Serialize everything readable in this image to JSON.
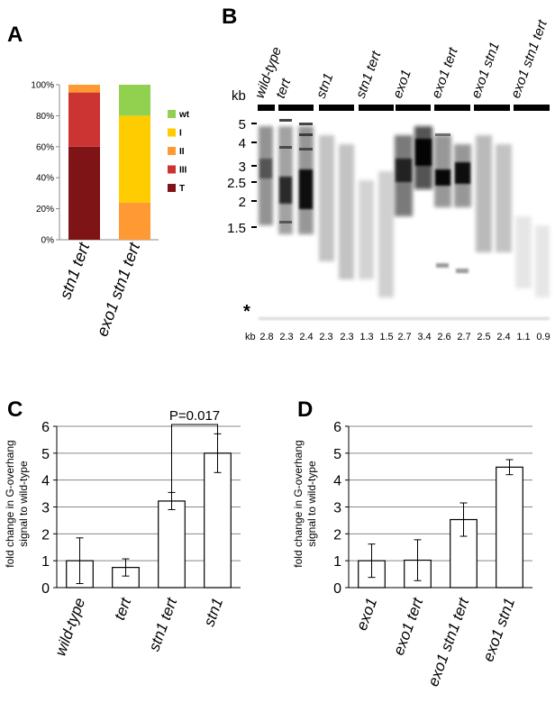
{
  "panels": {
    "A": {
      "label": "A"
    },
    "B": {
      "label": "B"
    },
    "C": {
      "label": "C"
    },
    "D": {
      "label": "D"
    }
  },
  "panelA": {
    "yticks": [
      "0%",
      "20%",
      "40%",
      "60%",
      "80%",
      "100%"
    ],
    "categories": [
      "stn1 tert",
      "exo1 stn1 tert"
    ],
    "legend": [
      {
        "label": "wt",
        "color": "#92d050"
      },
      {
        "label": "I",
        "color": "#ffcc00"
      },
      {
        "label": "II",
        "color": "#ff9933"
      },
      {
        "label": "III",
        "color": "#cc3333"
      },
      {
        "label": "T",
        "color": "#7f1416"
      }
    ]
  },
  "panelB": {
    "kb_label": "kb",
    "markers": [
      "5",
      "4",
      "3",
      "2.5",
      "2",
      "1.5"
    ],
    "asterisk": "*",
    "groups": [
      "wild-type",
      "tert",
      "stn1",
      "stn1 tert",
      "exo1",
      "exo1 tert",
      "exo1 stn1",
      "exo1 stn1 tert"
    ],
    "bottom_kb_label": "kb",
    "lane_kb": [
      "2.8",
      "2.3",
      "2.4",
      "2.3",
      "2.3",
      "1.3",
      "1.5",
      "2.7",
      "3.4",
      "2.6",
      "2.7",
      "2.5",
      "2.4",
      "1.1",
      "0.9"
    ]
  },
  "panelC": {
    "pvalue": "P=0.017"
  },
  "panelD": {},
  "chart_data": [
    {
      "panel": "A",
      "type": "bar",
      "stacked": true,
      "categories": [
        "stn1 tert",
        "exo1 stn1 tert"
      ],
      "ylim": [
        0,
        100
      ],
      "yunit": "%",
      "series": [
        {
          "name": "T",
          "values": [
            60,
            0
          ]
        },
        {
          "name": "III",
          "values": [
            35,
            0
          ]
        },
        {
          "name": "II",
          "values": [
            5,
            24
          ]
        },
        {
          "name": "I",
          "values": [
            0,
            56
          ]
        },
        {
          "name": "wt",
          "values": [
            0,
            20
          ]
        }
      ],
      "grid": false,
      "legend": "right"
    },
    {
      "panel": "C",
      "type": "bar",
      "categories": [
        "wild-type",
        "tert",
        "stn1 tert",
        "stn1"
      ],
      "values": [
        1.0,
        0.75,
        3.22,
        5.0
      ],
      "errors": [
        0.85,
        0.32,
        0.32,
        0.72
      ],
      "ylabel": "fold change in G-overhang signal to wild-type",
      "ylim": [
        0,
        6
      ],
      "yticks": [
        "0",
        "1",
        "2",
        "3",
        "4",
        "5",
        "6"
      ],
      "grid": true,
      "annotation": {
        "text": "P=0.017",
        "between": [
          "stn1 tert",
          "stn1"
        ]
      }
    },
    {
      "panel": "D",
      "type": "bar",
      "categories": [
        "exo1",
        "exo1 tert",
        "exo1 stn1 tert",
        "exo1 stn1"
      ],
      "values": [
        1.0,
        1.02,
        2.53,
        4.48
      ],
      "errors": [
        0.62,
        0.76,
        0.62,
        0.28
      ],
      "ylabel": "fold change in G-overhang signal to wild-type",
      "ylim": [
        0,
        6
      ],
      "yticks": [
        "0",
        "1",
        "2",
        "3",
        "4",
        "5",
        "6"
      ],
      "grid": true
    }
  ]
}
